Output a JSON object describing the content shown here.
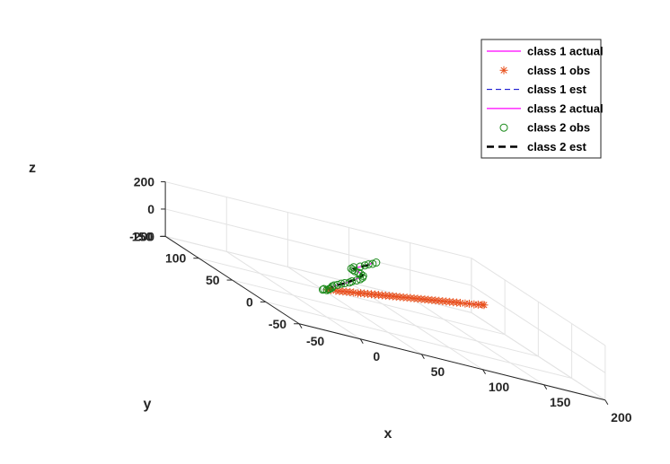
{
  "chart_data": {
    "type": "line3d",
    "title": "",
    "xlabel": "x",
    "ylabel": "y",
    "zlabel": "z",
    "xlim": [
      -50,
      200
    ],
    "ylim": [
      -50,
      150
    ],
    "zlim": [
      -200,
      200
    ],
    "x_ticks": [
      "-50",
      "0",
      "50",
      "100",
      "150",
      "200"
    ],
    "y_ticks": [
      "-50",
      "0",
      "50",
      "100",
      "150"
    ],
    "z_ticks": [
      "-200",
      "0",
      "200"
    ],
    "grid": true,
    "legend_position": "top-right",
    "colors": {
      "class1_actual": "#ff00ff",
      "class1_obs": "#e8501c",
      "class1_est": "#0000cc",
      "class2_actual": "#ff00ff",
      "class2_obs": "#1a8a1a",
      "class2_est": "#000000"
    },
    "legend": [
      {
        "label": "class 1 actual",
        "marker": "line",
        "color": "#ff00ff"
      },
      {
        "label": "class 1 obs",
        "marker": "asterisk",
        "color": "#e8501c"
      },
      {
        "label": "class 1 est",
        "marker": "dash",
        "color": "#0000cc"
      },
      {
        "label": "class 2 actual",
        "marker": "line",
        "color": "#ff00ff"
      },
      {
        "label": "class 2 obs",
        "marker": "circle",
        "color": "#1a8a1a"
      },
      {
        "label": "class 2 est",
        "marker": "thickdash",
        "color": "#000000"
      }
    ],
    "series": [
      {
        "name": "class 1 actual",
        "points": [
          [
            0,
            0,
            0
          ],
          [
            20,
            10,
            0
          ],
          [
            40,
            20,
            0
          ],
          [
            60,
            30,
            0
          ],
          [
            80,
            40,
            0
          ],
          [
            100,
            50,
            0
          ],
          [
            120,
            60,
            0
          ],
          [
            140,
            70,
            0
          ],
          [
            160,
            80,
            0
          ],
          [
            175,
            88,
            0
          ]
        ]
      },
      {
        "name": "class 1 obs",
        "points": [
          [
            1,
            1,
            0
          ],
          [
            5,
            3,
            0
          ],
          [
            10,
            5,
            0
          ],
          [
            14,
            7,
            0
          ],
          [
            18,
            9,
            0
          ],
          [
            22,
            11,
            0
          ],
          [
            26,
            13,
            0
          ],
          [
            30,
            15,
            0
          ],
          [
            34,
            16,
            0
          ],
          [
            38,
            19,
            0
          ],
          [
            42,
            21,
            0
          ],
          [
            46,
            23,
            0
          ],
          [
            50,
            25,
            0
          ],
          [
            54,
            27,
            0
          ],
          [
            58,
            29,
            0
          ],
          [
            62,
            31,
            0
          ],
          [
            66,
            33,
            0
          ],
          [
            70,
            35,
            0
          ],
          [
            74,
            37,
            0
          ],
          [
            78,
            39,
            0
          ],
          [
            82,
            41,
            0
          ],
          [
            86,
            43,
            0
          ],
          [
            90,
            45,
            0
          ],
          [
            94,
            47,
            0
          ],
          [
            98,
            49,
            0
          ],
          [
            102,
            51,
            0
          ],
          [
            106,
            53,
            0
          ],
          [
            110,
            55,
            0
          ],
          [
            114,
            57,
            0
          ],
          [
            118,
            59,
            0
          ],
          [
            122,
            61,
            0
          ],
          [
            126,
            63,
            0
          ],
          [
            130,
            65,
            0
          ],
          [
            134,
            67,
            0
          ],
          [
            138,
            69,
            0
          ],
          [
            142,
            71,
            0
          ],
          [
            146,
            73,
            0
          ],
          [
            150,
            75,
            0
          ],
          [
            155,
            77,
            0
          ],
          [
            160,
            80,
            0
          ],
          [
            165,
            82,
            0
          ],
          [
            170,
            85,
            0
          ],
          [
            175,
            88,
            0
          ],
          [
            177,
            89,
            0
          ]
        ]
      },
      {
        "name": "class 1 est",
        "points": [
          [
            0,
            0,
            0
          ],
          [
            20,
            10,
            0
          ],
          [
            40,
            20,
            0
          ],
          [
            60,
            30,
            0
          ],
          [
            80,
            40,
            0
          ],
          [
            100,
            50,
            0
          ],
          [
            120,
            60,
            0
          ],
          [
            140,
            70,
            0
          ],
          [
            160,
            80,
            0
          ],
          [
            175,
            88,
            0
          ]
        ]
      },
      {
        "name": "class 2 actual",
        "points": [
          [
            0,
            0,
            0
          ],
          [
            4,
            2,
            10
          ],
          [
            6,
            3,
            25
          ],
          [
            10,
            5,
            40
          ],
          [
            20,
            10,
            60
          ],
          [
            28,
            15,
            80
          ],
          [
            36,
            19,
            105
          ],
          [
            40,
            20,
            130
          ],
          [
            38,
            19,
            145
          ],
          [
            34,
            17,
            160
          ],
          [
            30,
            15,
            175
          ],
          [
            36,
            18,
            190
          ],
          [
            46,
            23,
            210
          ],
          [
            52,
            26,
            235
          ]
        ]
      },
      {
        "name": "class 2 obs",
        "points": [
          [
            -5,
            -3,
            0
          ],
          [
            -3,
            -1,
            3
          ],
          [
            0,
            0,
            -2
          ],
          [
            2,
            1,
            5
          ],
          [
            3,
            1,
            12
          ],
          [
            5,
            2,
            20
          ],
          [
            6,
            3,
            30
          ],
          [
            8,
            4,
            38
          ],
          [
            12,
            6,
            45
          ],
          [
            16,
            8,
            55
          ],
          [
            20,
            10,
            62
          ],
          [
            25,
            12,
            72
          ],
          [
            28,
            14,
            80
          ],
          [
            33,
            16,
            92
          ],
          [
            37,
            18,
            103
          ],
          [
            40,
            20,
            115
          ],
          [
            41,
            21,
            127
          ],
          [
            38,
            19,
            140
          ],
          [
            35,
            17,
            150
          ],
          [
            31,
            15,
            158
          ],
          [
            29,
            14,
            166
          ],
          [
            27,
            13,
            175
          ],
          [
            30,
            15,
            185
          ],
          [
            37,
            18,
            196
          ],
          [
            43,
            22,
            205
          ],
          [
            47,
            24,
            215
          ],
          [
            51,
            25,
            225
          ],
          [
            55,
            27,
            237
          ]
        ]
      },
      {
        "name": "class 2 est",
        "points": [
          [
            0,
            0,
            0
          ],
          [
            4,
            2,
            10
          ],
          [
            6,
            3,
            25
          ],
          [
            10,
            5,
            40
          ],
          [
            20,
            10,
            60
          ],
          [
            28,
            15,
            80
          ],
          [
            36,
            19,
            105
          ],
          [
            40,
            20,
            130
          ],
          [
            38,
            19,
            145
          ],
          [
            34,
            17,
            160
          ],
          [
            30,
            15,
            175
          ],
          [
            36,
            18,
            190
          ],
          [
            46,
            23,
            210
          ],
          [
            52,
            26,
            235
          ]
        ]
      }
    ]
  }
}
